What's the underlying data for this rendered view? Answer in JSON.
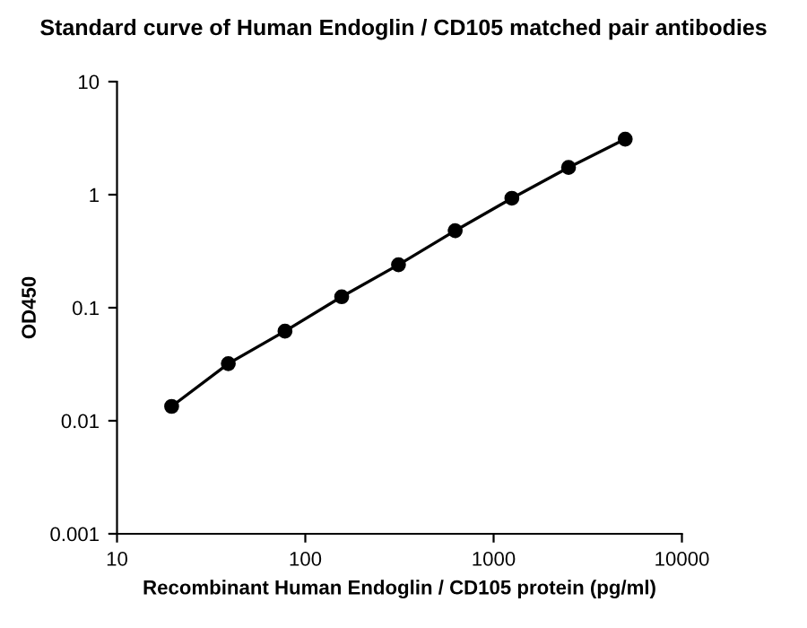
{
  "chart_data": {
    "type": "line",
    "title": "Standard curve of Human Endoglin / CD105 matched pair antibodies",
    "xlabel": "Recombinant Human Endoglin / CD105 protein (pg/ml)",
    "ylabel": "OD450",
    "x": [
      19.5,
      39,
      78,
      156,
      312.5,
      625,
      1250,
      2500,
      5000
    ],
    "series": [
      {
        "color": "#000000",
        "values": [
          0.0134,
          0.032,
          0.062,
          0.125,
          0.24,
          0.48,
          0.93,
          1.74,
          3.1
        ]
      }
    ],
    "log": "xy",
    "xlim": [
      10,
      10000
    ],
    "xticks": [
      10,
      100,
      1000,
      10000
    ],
    "ylim": [
      0.001,
      10
    ],
    "yticks": [
      0.001,
      0.01,
      0.1,
      1,
      10
    ],
    "marker": "circle",
    "line_style": "solid",
    "grid": false
  }
}
